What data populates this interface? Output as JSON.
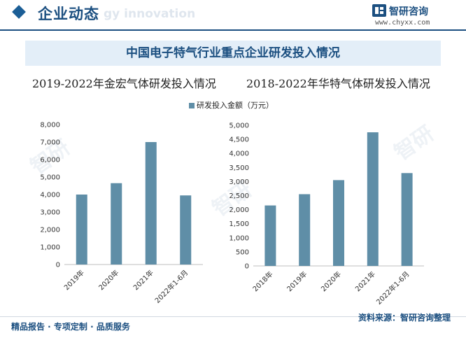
{
  "header": {
    "section_title": "企业动态",
    "watermark_text": "gy innovation",
    "logo_name": "智研咨询",
    "logo_url": "www.chyxx.com"
  },
  "banner": {
    "title": "中国电子特气行业重点企业研发投入情况"
  },
  "legend": {
    "label": "研发投入金额（万元）"
  },
  "footer": {
    "left": "精品报告 · 专项定制 · 品质服务",
    "right": "资料来源：智研咨询整理"
  },
  "colors": {
    "bar": "#5f8ea7",
    "brand": "#1b4f80"
  },
  "chart_data": [
    {
      "type": "bar",
      "title": "2019-2022年金宏气体研发投入情况",
      "series": [
        {
          "name": "研发投入金额（万元）",
          "values": [
            4000,
            4650,
            7000,
            3950
          ]
        }
      ],
      "categories": [
        "2019年",
        "2020年",
        "2021年",
        "2022年1-6月"
      ],
      "ylim": [
        0,
        8000
      ],
      "yticks": [
        0,
        1000,
        2000,
        3000,
        4000,
        5000,
        6000,
        7000,
        8000
      ],
      "ytick_labels": [
        "0",
        "1,000",
        "2,000",
        "3,000",
        "4,000",
        "5,000",
        "6,000",
        "7,000",
        "8,000"
      ]
    },
    {
      "type": "bar",
      "title": "2018-2022年华特气体研发投入情况",
      "series": [
        {
          "name": "研发投入金额（万元）",
          "values": [
            2150,
            2550,
            3050,
            4750,
            3300
          ]
        }
      ],
      "categories": [
        "2018年",
        "2019年",
        "2020年",
        "2021年",
        "2022年1-6月"
      ],
      "ylim": [
        0,
        5000
      ],
      "yticks": [
        0,
        500,
        1000,
        1500,
        2000,
        2500,
        3000,
        3500,
        4000,
        4500,
        5000
      ],
      "ytick_labels": [
        "0",
        "500",
        "1,000",
        "1,500",
        "2,000",
        "2,500",
        "3,000",
        "3,500",
        "4,000",
        "4,500",
        "5,000"
      ]
    }
  ]
}
